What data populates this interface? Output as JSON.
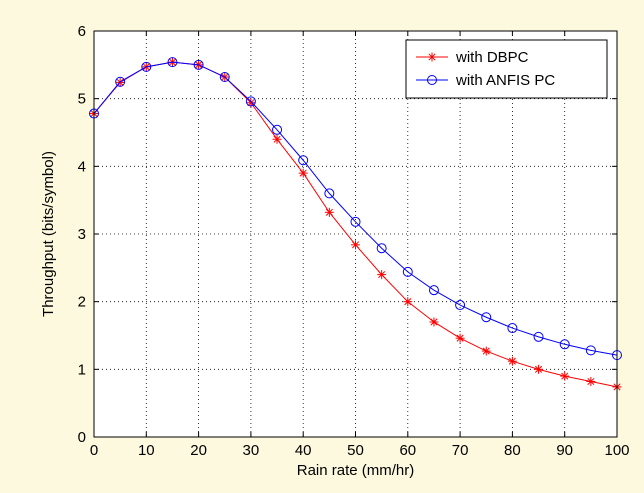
{
  "chart_data": {
    "type": "line",
    "title": "",
    "xlabel": "Rain rate (mm/hr)",
    "ylabel": "Throughput (bits/symbol)",
    "xlim": [
      0,
      100
    ],
    "ylim": [
      0,
      6
    ],
    "xticks": [
      0,
      10,
      20,
      30,
      40,
      50,
      60,
      70,
      80,
      90,
      100
    ],
    "yticks": [
      0,
      1,
      2,
      3,
      4,
      5,
      6
    ],
    "grid": true,
    "legend_position": "top-right",
    "x": [
      0,
      5,
      10,
      15,
      20,
      25,
      30,
      35,
      40,
      45,
      50,
      55,
      60,
      65,
      70,
      75,
      80,
      85,
      90,
      95,
      100
    ],
    "series": [
      {
        "name": "with DBPC",
        "color": "#ff0000",
        "marker": "asterisk",
        "values": [
          4.78,
          5.24,
          5.47,
          5.54,
          5.5,
          5.32,
          4.94,
          4.4,
          3.9,
          3.32,
          2.84,
          2.4,
          2.0,
          1.7,
          1.46,
          1.27,
          1.12,
          1.0,
          0.9,
          0.82,
          0.74
        ]
      },
      {
        "name": "with ANFIS PC",
        "color": "#0000ff",
        "marker": "circle",
        "values": [
          4.78,
          5.25,
          5.47,
          5.54,
          5.5,
          5.32,
          4.96,
          4.54,
          4.09,
          3.6,
          3.18,
          2.79,
          2.44,
          2.17,
          1.95,
          1.77,
          1.61,
          1.48,
          1.37,
          1.28,
          1.21
        ]
      }
    ]
  }
}
